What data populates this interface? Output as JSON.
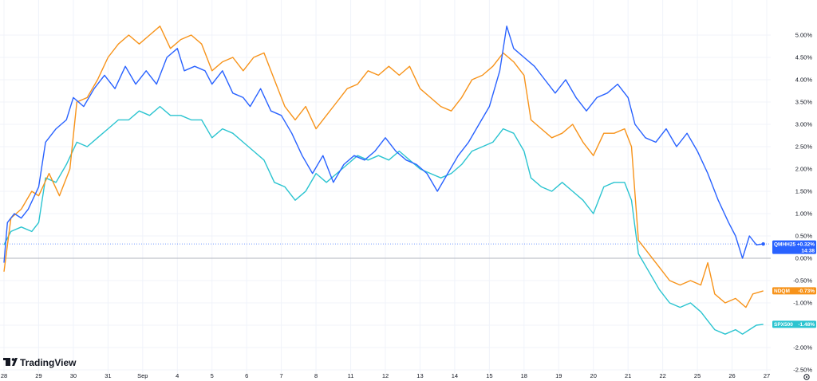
{
  "brand": {
    "name": "TradingView"
  },
  "colors": {
    "qmh": "#2962ff",
    "ndq": "#f7931a",
    "spx": "#2bc4d0",
    "grid": "#f0f3fa",
    "zero": "#b2b5be"
  },
  "chart_data": {
    "type": "line",
    "y_unit": "%",
    "ylim": [
      -2.5,
      5.25
    ],
    "y_ticks": [
      "5.00%",
      "4.50%",
      "4.00%",
      "3.50%",
      "3.00%",
      "2.50%",
      "2.00%",
      "1.50%",
      "1.00%",
      "0.50%",
      "0.00%",
      "-0.50%",
      "-1.00%",
      "-1.50%",
      "-2.00%",
      "-2.50%"
    ],
    "y_tick_values": [
      5,
      4.5,
      4,
      3.5,
      3,
      2.5,
      2,
      1.5,
      1,
      0.5,
      0,
      -0.5,
      -1,
      -1.5,
      -2,
      -2.5
    ],
    "x_ticks": [
      "28",
      "29",
      "30",
      "31",
      "Sep",
      "4",
      "5",
      "6",
      "7",
      "8",
      "11",
      "12",
      "13",
      "14",
      "15",
      "18",
      "19",
      "20",
      "21",
      "22",
      "25",
      "26",
      "27"
    ],
    "x_tick_positions": [
      0,
      1,
      2,
      3,
      4,
      5,
      6,
      7,
      8,
      9,
      10,
      11,
      12,
      13,
      14,
      15,
      16,
      17,
      18,
      19,
      20,
      21,
      22
    ],
    "grid": true,
    "series": [
      {
        "name": "QMHH25",
        "color": "#2962ff",
        "last_value": "+0.32%",
        "countdown": "14:38",
        "points": [
          [
            0,
            -0.1
          ],
          [
            0.1,
            0.8
          ],
          [
            0.3,
            1.0
          ],
          [
            0.5,
            0.9
          ],
          [
            0.7,
            1.1
          ],
          [
            1,
            1.6
          ],
          [
            1.2,
            2.6
          ],
          [
            1.5,
            2.9
          ],
          [
            1.8,
            3.1
          ],
          [
            2,
            3.6
          ],
          [
            2.3,
            3.4
          ],
          [
            2.6,
            3.8
          ],
          [
            2.9,
            4.1
          ],
          [
            3.2,
            3.8
          ],
          [
            3.5,
            4.3
          ],
          [
            3.8,
            3.9
          ],
          [
            4.1,
            4.2
          ],
          [
            4.4,
            3.9
          ],
          [
            4.7,
            4.5
          ],
          [
            5,
            4.7
          ],
          [
            5.2,
            4.2
          ],
          [
            5.5,
            4.3
          ],
          [
            5.8,
            4.2
          ],
          [
            6,
            3.9
          ],
          [
            6.3,
            4.2
          ],
          [
            6.6,
            3.7
          ],
          [
            6.9,
            3.6
          ],
          [
            7.1,
            3.4
          ],
          [
            7.4,
            3.8
          ],
          [
            7.7,
            3.3
          ],
          [
            8,
            3.2
          ],
          [
            8.3,
            2.8
          ],
          [
            8.6,
            2.3
          ],
          [
            8.9,
            1.9
          ],
          [
            9.2,
            2.3
          ],
          [
            9.5,
            1.7
          ],
          [
            9.8,
            2.1
          ],
          [
            10.1,
            2.3
          ],
          [
            10.4,
            2.2
          ],
          [
            10.7,
            2.4
          ],
          [
            11,
            2.7
          ],
          [
            11.3,
            2.4
          ],
          [
            11.6,
            2.2
          ],
          [
            11.9,
            2.1
          ],
          [
            12.2,
            1.9
          ],
          [
            12.5,
            1.5
          ],
          [
            12.8,
            1.9
          ],
          [
            13.1,
            2.3
          ],
          [
            13.4,
            2.6
          ],
          [
            13.7,
            3.0
          ],
          [
            14,
            3.4
          ],
          [
            14.3,
            4.2
          ],
          [
            14.5,
            5.2
          ],
          [
            14.7,
            4.7
          ],
          [
            15,
            4.5
          ],
          [
            15.3,
            4.3
          ],
          [
            15.6,
            4.0
          ],
          [
            15.9,
            3.7
          ],
          [
            16.2,
            4.0
          ],
          [
            16.5,
            3.6
          ],
          [
            16.8,
            3.3
          ],
          [
            17.1,
            3.6
          ],
          [
            17.4,
            3.7
          ],
          [
            17.7,
            3.9
          ],
          [
            18,
            3.6
          ],
          [
            18.2,
            3.0
          ],
          [
            18.5,
            2.7
          ],
          [
            18.8,
            2.6
          ],
          [
            19.1,
            2.9
          ],
          [
            19.4,
            2.5
          ],
          [
            19.7,
            2.8
          ],
          [
            20,
            2.4
          ],
          [
            20.3,
            1.9
          ],
          [
            20.6,
            1.3
          ],
          [
            20.9,
            0.8
          ],
          [
            21.1,
            0.5
          ],
          [
            21.3,
            0.0
          ],
          [
            21.5,
            0.5
          ],
          [
            21.7,
            0.3
          ],
          [
            21.9,
            0.32
          ]
        ]
      },
      {
        "name": "NDQM",
        "color": "#f7931a",
        "last_value": "-0.73%",
        "points": [
          [
            0,
            -0.3
          ],
          [
            0.2,
            0.9
          ],
          [
            0.5,
            1.1
          ],
          [
            0.8,
            1.5
          ],
          [
            1,
            1.4
          ],
          [
            1.3,
            1.9
          ],
          [
            1.6,
            1.4
          ],
          [
            1.9,
            2.0
          ],
          [
            2.1,
            3.5
          ],
          [
            2.4,
            3.6
          ],
          [
            2.7,
            4.0
          ],
          [
            3,
            4.5
          ],
          [
            3.3,
            4.8
          ],
          [
            3.6,
            5.0
          ],
          [
            3.9,
            4.8
          ],
          [
            4.2,
            5.0
          ],
          [
            4.5,
            5.2
          ],
          [
            4.8,
            4.7
          ],
          [
            5.1,
            4.9
          ],
          [
            5.4,
            5.0
          ],
          [
            5.7,
            4.8
          ],
          [
            6,
            4.2
          ],
          [
            6.3,
            4.4
          ],
          [
            6.6,
            4.5
          ],
          [
            6.9,
            4.2
          ],
          [
            7.2,
            4.5
          ],
          [
            7.5,
            4.6
          ],
          [
            7.8,
            4.0
          ],
          [
            8.1,
            3.4
          ],
          [
            8.4,
            3.1
          ],
          [
            8.7,
            3.4
          ],
          [
            9,
            2.9
          ],
          [
            9.3,
            3.2
          ],
          [
            9.6,
            3.5
          ],
          [
            9.9,
            3.8
          ],
          [
            10.2,
            3.9
          ],
          [
            10.5,
            4.2
          ],
          [
            10.8,
            4.1
          ],
          [
            11.1,
            4.3
          ],
          [
            11.4,
            4.1
          ],
          [
            11.7,
            4.3
          ],
          [
            12,
            3.8
          ],
          [
            12.3,
            3.6
          ],
          [
            12.6,
            3.4
          ],
          [
            12.9,
            3.3
          ],
          [
            13.2,
            3.6
          ],
          [
            13.5,
            4.0
          ],
          [
            13.8,
            4.1
          ],
          [
            14.1,
            4.3
          ],
          [
            14.4,
            4.6
          ],
          [
            14.7,
            4.4
          ],
          [
            15,
            4.1
          ],
          [
            15.2,
            3.1
          ],
          [
            15.5,
            2.9
          ],
          [
            15.8,
            2.7
          ],
          [
            16.1,
            2.8
          ],
          [
            16.4,
            3.0
          ],
          [
            16.7,
            2.6
          ],
          [
            17,
            2.3
          ],
          [
            17.3,
            2.8
          ],
          [
            17.6,
            2.8
          ],
          [
            17.9,
            2.9
          ],
          [
            18.1,
            2.5
          ],
          [
            18.3,
            0.4
          ],
          [
            18.6,
            0.1
          ],
          [
            18.9,
            -0.2
          ],
          [
            19.2,
            -0.5
          ],
          [
            19.5,
            -0.6
          ],
          [
            19.8,
            -0.5
          ],
          [
            20.1,
            -0.6
          ],
          [
            20.3,
            -0.1
          ],
          [
            20.5,
            -0.8
          ],
          [
            20.8,
            -1.0
          ],
          [
            21.1,
            -0.9
          ],
          [
            21.4,
            -1.1
          ],
          [
            21.6,
            -0.8
          ],
          [
            21.9,
            -0.73
          ]
        ]
      },
      {
        "name": "SPX500",
        "color": "#2bc4d0",
        "last_value": "-1.48%",
        "points": [
          [
            0,
            0.3
          ],
          [
            0.2,
            0.6
          ],
          [
            0.5,
            0.7
          ],
          [
            0.8,
            0.6
          ],
          [
            1,
            0.8
          ],
          [
            1.2,
            1.8
          ],
          [
            1.5,
            1.7
          ],
          [
            1.8,
            2.1
          ],
          [
            2.1,
            2.6
          ],
          [
            2.4,
            2.5
          ],
          [
            2.7,
            2.7
          ],
          [
            3,
            2.9
          ],
          [
            3.3,
            3.1
          ],
          [
            3.6,
            3.1
          ],
          [
            3.9,
            3.3
          ],
          [
            4.2,
            3.2
          ],
          [
            4.5,
            3.4
          ],
          [
            4.8,
            3.2
          ],
          [
            5.1,
            3.2
          ],
          [
            5.4,
            3.1
          ],
          [
            5.7,
            3.1
          ],
          [
            6,
            2.7
          ],
          [
            6.3,
            2.9
          ],
          [
            6.6,
            2.8
          ],
          [
            6.9,
            2.6
          ],
          [
            7.2,
            2.4
          ],
          [
            7.5,
            2.2
          ],
          [
            7.8,
            1.7
          ],
          [
            8.1,
            1.6
          ],
          [
            8.4,
            1.3
          ],
          [
            8.7,
            1.5
          ],
          [
            9,
            1.9
          ],
          [
            9.3,
            1.7
          ],
          [
            9.6,
            1.9
          ],
          [
            9.9,
            2.1
          ],
          [
            10.2,
            2.3
          ],
          [
            10.5,
            2.2
          ],
          [
            10.8,
            2.3
          ],
          [
            11.1,
            2.2
          ],
          [
            11.4,
            2.4
          ],
          [
            11.7,
            2.2
          ],
          [
            12,
            2.0
          ],
          [
            12.3,
            1.9
          ],
          [
            12.6,
            1.8
          ],
          [
            12.9,
            1.9
          ],
          [
            13.2,
            2.1
          ],
          [
            13.5,
            2.4
          ],
          [
            13.8,
            2.5
          ],
          [
            14.1,
            2.6
          ],
          [
            14.4,
            2.9
          ],
          [
            14.7,
            2.8
          ],
          [
            15,
            2.4
          ],
          [
            15.2,
            1.8
          ],
          [
            15.5,
            1.6
          ],
          [
            15.8,
            1.5
          ],
          [
            16.1,
            1.7
          ],
          [
            16.4,
            1.5
          ],
          [
            16.7,
            1.3
          ],
          [
            17,
            1.0
          ],
          [
            17.3,
            1.6
          ],
          [
            17.6,
            1.7
          ],
          [
            17.9,
            1.7
          ],
          [
            18.1,
            1.3
          ],
          [
            18.3,
            0.1
          ],
          [
            18.6,
            -0.3
          ],
          [
            18.9,
            -0.7
          ],
          [
            19.2,
            -1.0
          ],
          [
            19.5,
            -1.1
          ],
          [
            19.8,
            -1.0
          ],
          [
            20.1,
            -1.2
          ],
          [
            20.3,
            -1.4
          ],
          [
            20.5,
            -1.6
          ],
          [
            20.8,
            -1.7
          ],
          [
            21.1,
            -1.6
          ],
          [
            21.3,
            -1.7
          ],
          [
            21.5,
            -1.6
          ],
          [
            21.7,
            -1.5
          ],
          [
            21.9,
            -1.48
          ]
        ]
      }
    ]
  }
}
